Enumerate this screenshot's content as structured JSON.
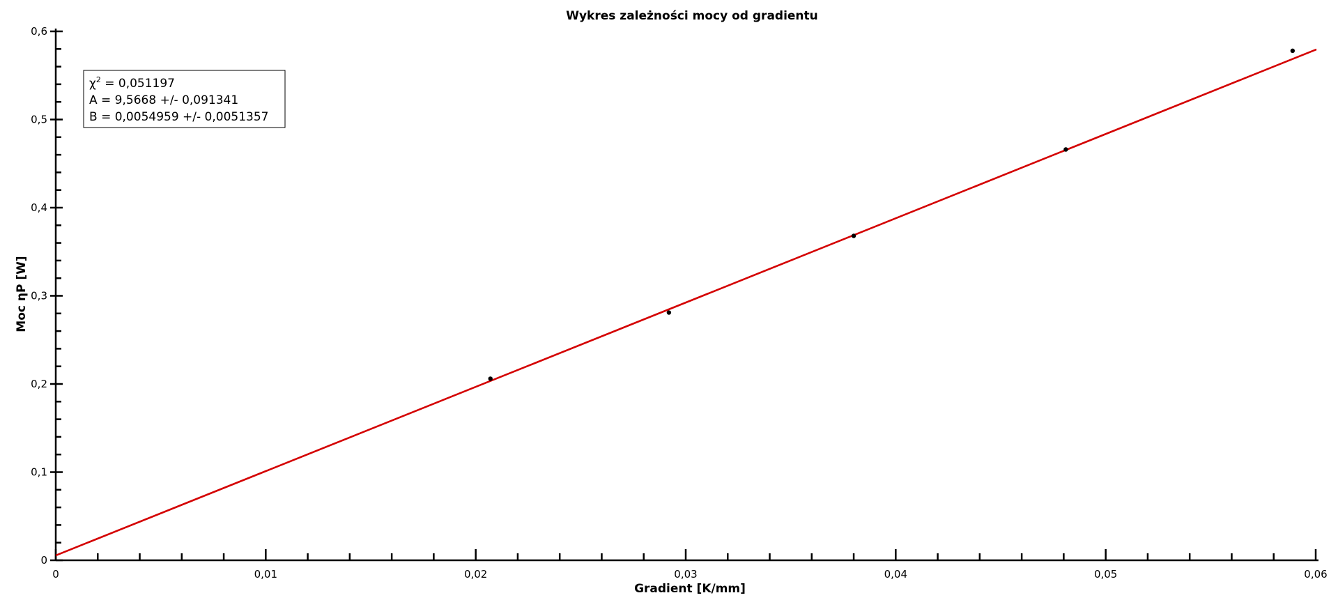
{
  "chart_data": {
    "type": "scatter",
    "title": "Wykres zależności mocy od gradientu",
    "xlabel": "Gradient [K/mm]",
    "ylabel": "Moc ηP [W]",
    "xlim": [
      0,
      0.06
    ],
    "ylim": [
      0,
      0.6
    ],
    "x_ticks": [
      "0",
      "0,01",
      "0,02",
      "0,03",
      "0,04",
      "0,05",
      "0,06"
    ],
    "y_ticks": [
      "0",
      "0,1",
      "0,2",
      "0,3",
      "0,4",
      "0,5",
      "0,6"
    ],
    "x_tick_values": [
      0,
      0.01,
      0.02,
      0.03,
      0.04,
      0.05,
      0.06
    ],
    "y_tick_values": [
      0,
      0.1,
      0.2,
      0.3,
      0.4,
      0.5,
      0.6
    ],
    "x_minor_step": 0.002,
    "y_minor_step": 0.02,
    "series": [
      {
        "kind": "points",
        "x": [
          0.0207,
          0.0292,
          0.038,
          0.0481,
          0.0589
        ],
        "y": [
          0.206,
          0.281,
          0.368,
          0.466,
          0.578
        ]
      },
      {
        "kind": "fit",
        "slope": 9.5668,
        "intercept": 0.0054959
      }
    ],
    "legend": {
      "chi_label": "χ",
      "chi_sup": "2",
      "chi_rest": " = 0,051197",
      "line_a": "A = 9,5668 +/- 0,091341",
      "line_b": "B = 0,0054959 +/- 0,0051357",
      "placement": "top-left"
    },
    "colors": {
      "fit_line": "#d40000",
      "points": "#000000"
    },
    "grid": false
  }
}
